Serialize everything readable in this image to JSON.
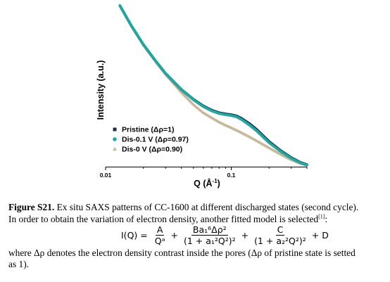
{
  "chart_data": {
    "type": "scatter",
    "xlabel": "Q (Å⁻¹)",
    "ylabel": "Intensity (a.u.)",
    "xscale": "log",
    "yscale": "log",
    "xlim": [
      0.01,
      0.4
    ],
    "x_ticks": [
      {
        "value": 0.01,
        "label": "0.01"
      },
      {
        "value": 0.1,
        "label": "0.1"
      }
    ],
    "legend_placement": "bottom-left",
    "series": [
      {
        "name": "Pristine (Δρ=1)",
        "marker": "square",
        "color": "#1d2b4d",
        "x": [
          0.013,
          0.016,
          0.02,
          0.025,
          0.03,
          0.04,
          0.05,
          0.06,
          0.07,
          0.08,
          0.09,
          0.1,
          0.11,
          0.12,
          0.14,
          0.16,
          0.2,
          0.25,
          0.3,
          0.35,
          0.4
        ],
        "y": [
          1000,
          380,
          150,
          68,
          37,
          17,
          10.5,
          7.6,
          6.2,
          5.5,
          5.2,
          5.0,
          4.7,
          4.2,
          3.2,
          2.4,
          1.35,
          0.85,
          0.62,
          0.5,
          0.44
        ]
      },
      {
        "name": "Dis-0.1 V (Δρ=0.97)",
        "marker": "circle",
        "color": "#1fa8a0",
        "x": [
          0.013,
          0.016,
          0.02,
          0.025,
          0.03,
          0.04,
          0.05,
          0.06,
          0.07,
          0.08,
          0.09,
          0.1,
          0.11,
          0.12,
          0.14,
          0.16,
          0.2,
          0.25,
          0.3,
          0.35,
          0.4
        ],
        "y": [
          1000,
          380,
          150,
          68,
          37,
          17,
          10.3,
          7.4,
          6.0,
          5.3,
          5.0,
          4.8,
          4.5,
          4.0,
          3.0,
          2.25,
          1.28,
          0.82,
          0.6,
          0.49,
          0.43
        ]
      },
      {
        "name": "Dis-0 V (Δρ=0.90)",
        "marker": "triangle",
        "color": "#c8b89a",
        "x": [
          0.013,
          0.016,
          0.02,
          0.025,
          0.03,
          0.04,
          0.05,
          0.06,
          0.07,
          0.08,
          0.09,
          0.1,
          0.11,
          0.12,
          0.14,
          0.16,
          0.2,
          0.25,
          0.3,
          0.35,
          0.4
        ],
        "y": [
          1000,
          380,
          150,
          68,
          36,
          15,
          8.2,
          5.5,
          4.3,
          3.5,
          3.0,
          2.65,
          2.35,
          2.1,
          1.7,
          1.4,
          1.0,
          0.72,
          0.56,
          0.47,
          0.43
        ]
      }
    ]
  },
  "caption": {
    "label": "Figure S21.",
    "line1": " Ex situ SAXS patterns of CC-1600 at different discharged states (second cycle).",
    "line2_a": "In order to obtain the variation of electron density, another fitted model is selected",
    "line2_ref": "[1]",
    "line2_b": ":",
    "line4": "where Δρ denotes the electron density contrast inside the pores (Δρ of pristine state is setted",
    "line5": "as 1)."
  },
  "equation": {
    "lhs": "I(Q) =",
    "t1_num": "A",
    "t1_den": "Qᵃ",
    "t2_num": "Ba₁⁶Δρ²",
    "t2_den": "(1 + a₁²Q²)²",
    "t3_num": "C",
    "t3_den": "(1 + a₂²Q²)²",
    "tail": "+ D",
    "plus": "+"
  }
}
